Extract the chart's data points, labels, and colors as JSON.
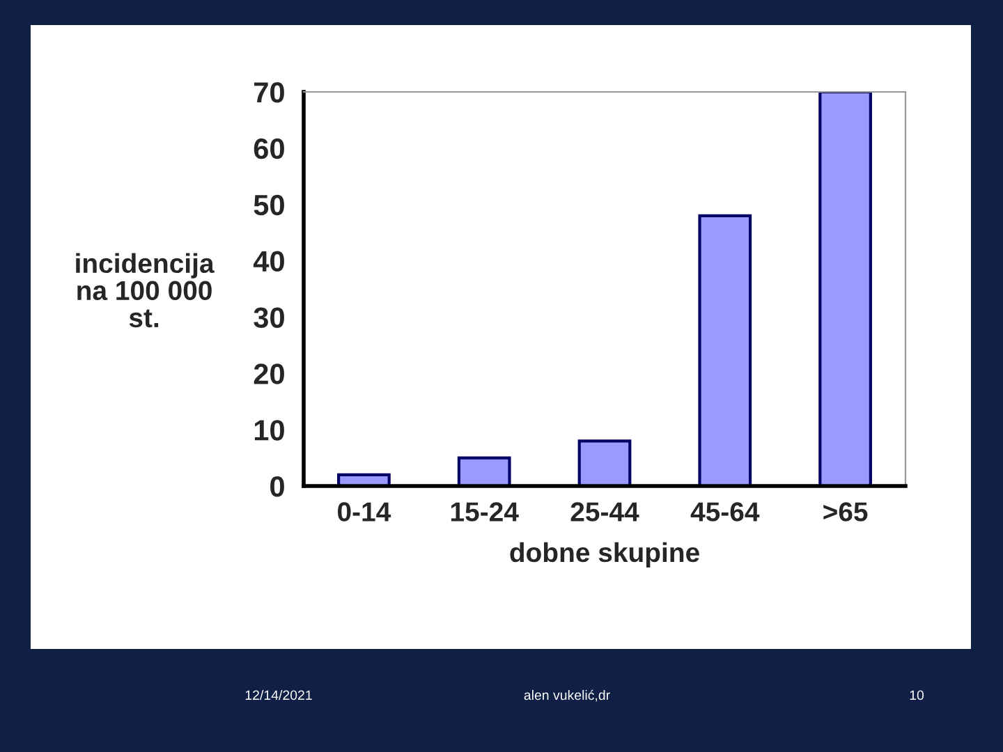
{
  "chart_data": {
    "type": "bar",
    "xlabel": "dobne skupine",
    "ylabel": "incidencija\nna 100 000\nst.",
    "categories": [
      "0-14",
      "15-24",
      "25-44",
      "45-64",
      ">65"
    ],
    "values": [
      2,
      5,
      8,
      48,
      70
    ],
    "color": "#9999ff",
    "ylim": [
      0,
      70
    ],
    "yticks": [
      0,
      10,
      20,
      30,
      40,
      50,
      60,
      70
    ],
    "grid": false,
    "annotations": [
      "12/14/2021",
      "alen vukelić,dr",
      "10"
    ]
  }
}
